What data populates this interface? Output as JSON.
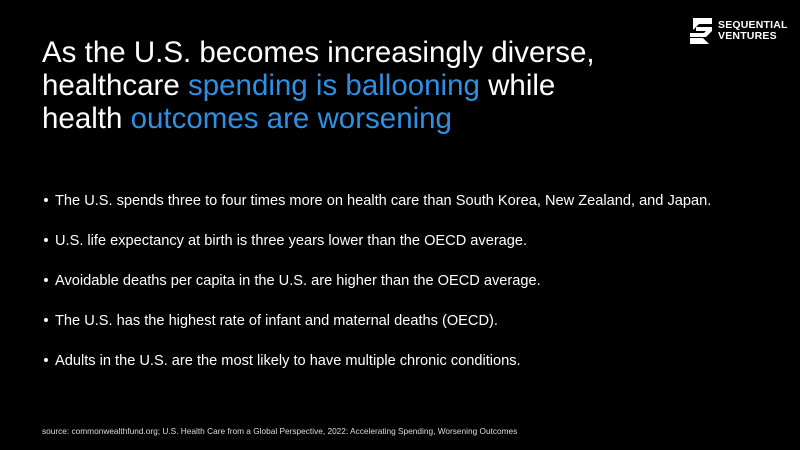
{
  "logo": {
    "lines": [
      "SEQUENTIAL",
      "VENTURES"
    ]
  },
  "title": {
    "lines": [
      [
        {
          "text": "As the U.S. becomes increasingly diverse,"
        }
      ],
      [
        {
          "text": "healthcare "
        },
        {
          "text": "spending is ballooning",
          "color": "#2f8fe3"
        },
        {
          "text": " while"
        }
      ],
      [
        {
          "text": "health "
        },
        {
          "text": "outcomes are worsening",
          "color": "#2f8fe3"
        }
      ]
    ]
  },
  "bullets": [
    "The U.S. spends three to four times more on health care than South Korea, New Zealand, and Japan.",
    "U.S. life expectancy at birth is three years lower than the OECD average.",
    "Avoidable deaths per capita in the U.S. are higher than the OECD average.",
    "The U.S. has the highest rate of infant and maternal deaths (OECD).",
    "Adults in the U.S. are the most likely to have multiple chronic conditions."
  ],
  "source": "source: commonwealthfund.org;  U.S. Health Care from a Global Perspective, 2022: Accelerating Spending, Worsening Outcomes"
}
